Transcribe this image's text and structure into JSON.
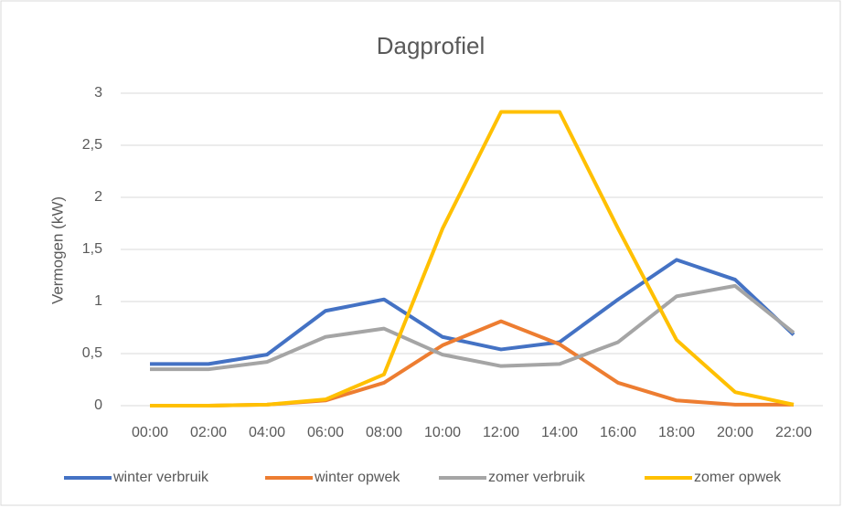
{
  "chart_data": {
    "type": "line",
    "title": "Dagprofiel",
    "ylabel": "Vermogen  (kW)",
    "categories": [
      "00:00",
      "02:00",
      "04:00",
      "06:00",
      "08:00",
      "10:00",
      "12:00",
      "14:00",
      "16:00",
      "18:00",
      "20:00",
      "22:00"
    ],
    "series": [
      {
        "name": "winter verbruik",
        "color": "#4472c4",
        "values": [
          0.4,
          0.4,
          0.49,
          0.91,
          1.02,
          0.66,
          0.54,
          0.61,
          1.02,
          1.4,
          1.21,
          0.68
        ]
      },
      {
        "name": "winter opwek",
        "color": "#ed7d31",
        "values": [
          0,
          0,
          0.01,
          0.05,
          0.22,
          0.58,
          0.81,
          0.59,
          0.22,
          0.05,
          0.01,
          0.01
        ]
      },
      {
        "name": "zomer verbruik",
        "color": "#a5a5a5",
        "values": [
          0.35,
          0.35,
          0.42,
          0.66,
          0.74,
          0.49,
          0.38,
          0.4,
          0.61,
          1.05,
          1.15,
          0.7
        ]
      },
      {
        "name": "zomer opwek",
        "color": "#ffc000",
        "values": [
          0,
          0,
          0.01,
          0.06,
          0.3,
          1.7,
          2.82,
          2.82,
          1.7,
          0.63,
          0.13,
          0.01
        ]
      }
    ],
    "ylim": [
      0,
      3
    ],
    "yticks": [
      0,
      {
        "value": 0.5,
        "label": "0,5"
      },
      1,
      {
        "value": 1.5,
        "label": "1,5"
      },
      2,
      {
        "value": 2.5,
        "label": "2,5"
      },
      3
    ],
    "grid": true,
    "legend": "bottom"
  }
}
